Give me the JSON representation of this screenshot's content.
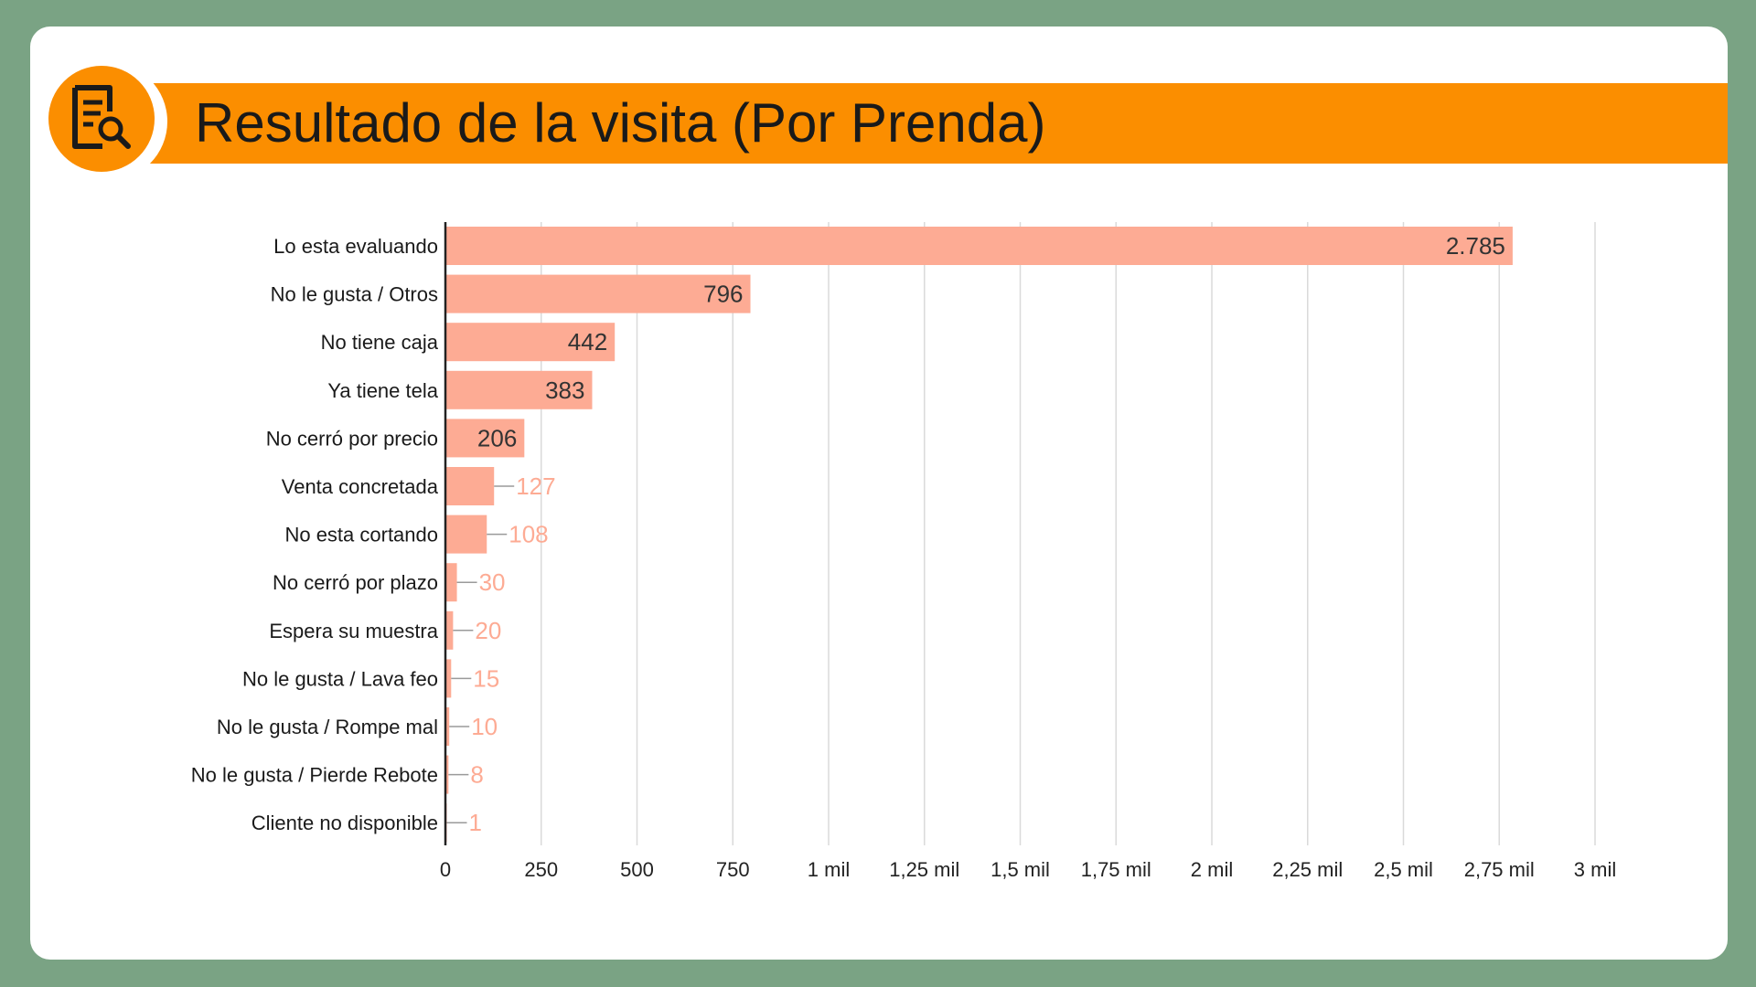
{
  "header": {
    "title": "Resultado de la visita (Por Prenda)",
    "icon": "document-search-icon",
    "accent_color": "#fb8e00"
  },
  "chart_data": {
    "type": "bar",
    "orientation": "horizontal",
    "categories": [
      "Lo esta evaluando",
      "No le gusta / Otros",
      "No tiene caja",
      "Ya tiene tela",
      "No cerró por precio",
      "Venta concretada",
      "No esta cortando",
      "No cerró por plazo",
      "Espera su muestra",
      "No le gusta / Lava feo",
      "No le gusta / Rompe mal",
      "No le gusta / Pierde Rebote",
      "Cliente no disponible"
    ],
    "values": [
      2785,
      796,
      442,
      383,
      206,
      127,
      108,
      30,
      20,
      15,
      10,
      8,
      1
    ],
    "value_labels": [
      "2.785",
      "796",
      "442",
      "383",
      "206",
      "127",
      "108",
      "30",
      "20",
      "15",
      "10",
      "8",
      "1"
    ],
    "xlim": [
      0,
      3000
    ],
    "x_ticks": [
      0,
      250,
      500,
      750,
      1000,
      1250,
      1500,
      1750,
      2000,
      2250,
      2500,
      2750,
      3000
    ],
    "x_tick_labels": [
      "0",
      "250",
      "500",
      "750",
      "1 mil",
      "1,25 mil",
      "1,5 mil",
      "1,75 mil",
      "2 mil",
      "2,25 mil",
      "2,5 mil",
      "2,75 mil",
      "3 mil"
    ],
    "grid": true,
    "legend": "none",
    "bar_color": "#fdab94",
    "label_outside_color": "#fdab94",
    "label_inside_color": "#333333"
  }
}
